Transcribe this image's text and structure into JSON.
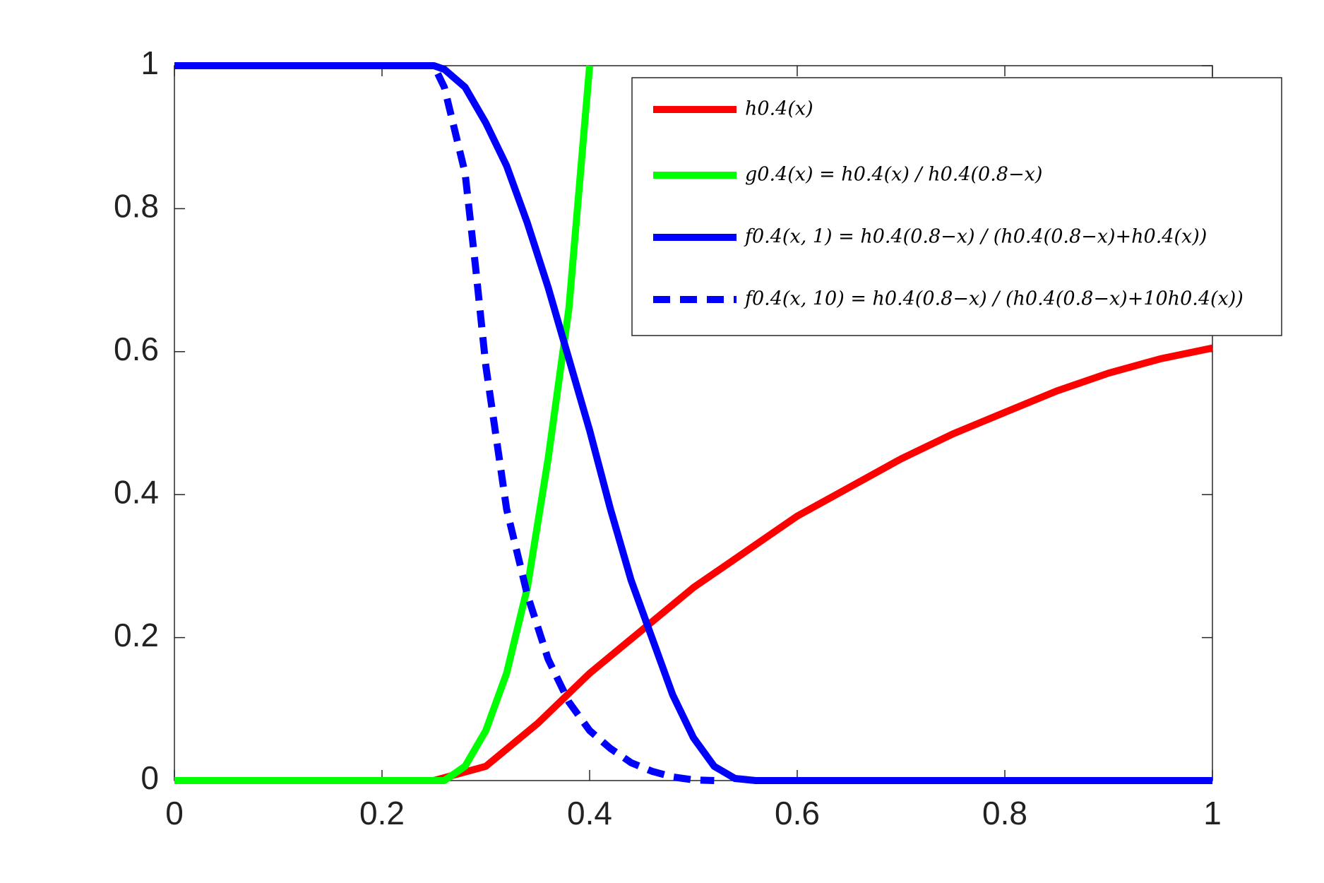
{
  "chart_data": {
    "type": "line",
    "xlim": [
      0,
      1
    ],
    "ylim": [
      0,
      1
    ],
    "xticks": [
      0,
      0.2,
      0.4,
      0.6,
      0.8,
      1
    ],
    "yticks": [
      0,
      0.2,
      0.4,
      0.6,
      0.8,
      1
    ],
    "grid": false,
    "legend": "upper right",
    "series": [
      {
        "name": "h0.4(x) ",
        "color": "#ff0000",
        "linestyle": "solid",
        "x": [
          0,
          0.25,
          0.3,
          0.35,
          0.4,
          0.45,
          0.5,
          0.55,
          0.6,
          0.65,
          0.7,
          0.75,
          0.8,
          0.85,
          0.9,
          0.95,
          1
        ],
        "values": [
          0,
          0,
          0.02,
          0.08,
          0.15,
          0.21,
          0.27,
          0.32,
          0.37,
          0.41,
          0.45,
          0.485,
          0.515,
          0.545,
          0.57,
          0.59,
          0.605
        ]
      },
      {
        "name": "g0.4(x) = h0.4(x) / h0.4(0.8−x)",
        "color": "#00ff00",
        "linestyle": "solid",
        "x": [
          0,
          0.26,
          0.28,
          0.3,
          0.32,
          0.34,
          0.36,
          0.38,
          0.4
        ],
        "values": [
          0,
          0,
          0.02,
          0.07,
          0.15,
          0.27,
          0.45,
          0.66,
          1.0
        ]
      },
      {
        "name": "f0.4(x, 1) = h0.4(0.8−x) / (h0.4(0.8−x)+h0.4(x))",
        "color": "#0000ff",
        "linestyle": "solid",
        "x": [
          0,
          0.25,
          0.26,
          0.28,
          0.3,
          0.32,
          0.34,
          0.36,
          0.38,
          0.4,
          0.42,
          0.44,
          0.46,
          0.48,
          0.5,
          0.52,
          0.54,
          0.56,
          1
        ],
        "values": [
          1,
          1,
          0.995,
          0.97,
          0.92,
          0.86,
          0.78,
          0.69,
          0.59,
          0.49,
          0.38,
          0.28,
          0.2,
          0.12,
          0.06,
          0.02,
          0.003,
          0,
          0
        ]
      },
      {
        "name": "f0.4(x, 10) = h0.4(0.8−x) / (h0.4(0.8−x)+10h0.4(x))",
        "color": "#0000ff",
        "linestyle": "dashed",
        "x": [
          0,
          0.25,
          0.26,
          0.28,
          0.29,
          0.3,
          0.32,
          0.34,
          0.36,
          0.38,
          0.4,
          0.42,
          0.44,
          0.46,
          0.48,
          0.5,
          0.52
        ],
        "values": [
          1,
          1,
          0.97,
          0.85,
          0.72,
          0.58,
          0.38,
          0.26,
          0.17,
          0.11,
          0.07,
          0.045,
          0.025,
          0.013,
          0.005,
          0.001,
          0
        ]
      }
    ]
  }
}
